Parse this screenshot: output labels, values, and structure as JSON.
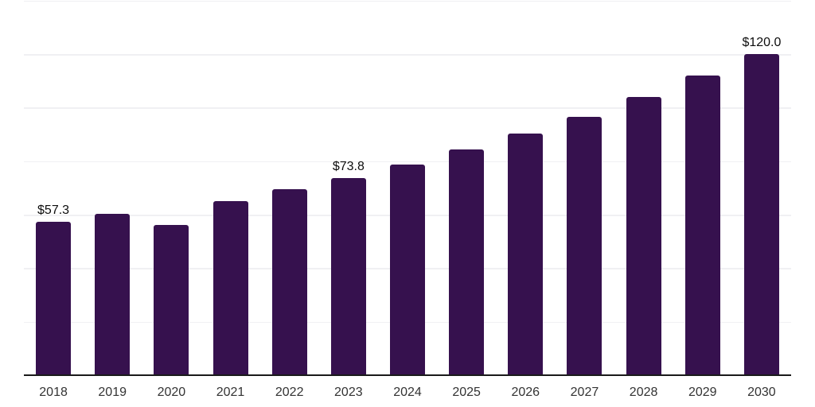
{
  "chart_data": {
    "type": "bar",
    "title": "",
    "xlabel": "",
    "ylabel": "",
    "categories": [
      "2018",
      "2019",
      "2020",
      "2021",
      "2022",
      "2023",
      "2024",
      "2025",
      "2026",
      "2027",
      "2028",
      "2029",
      "2030"
    ],
    "values": [
      57.3,
      60.4,
      56.2,
      65.1,
      69.4,
      73.8,
      78.8,
      84.5,
      90.2,
      96.6,
      103.9,
      111.9,
      120.0
    ],
    "data_labels": [
      "$57.3",
      "",
      "",
      "",
      "",
      "$73.8",
      "",
      "",
      "",
      "",
      "",
      "",
      "$120.0"
    ],
    "ylim": [
      0,
      140
    ],
    "gridline_step": 20,
    "grid": true,
    "legend": "none",
    "y_axis_labels_visible": false,
    "colors": {
      "bar": "#36114E",
      "gridline": "#F0F0F3",
      "axis_line": "#1A1A1A",
      "tick_label": "#333333",
      "data_label": "#0D0D0D",
      "background": "#FFFFFF"
    }
  }
}
